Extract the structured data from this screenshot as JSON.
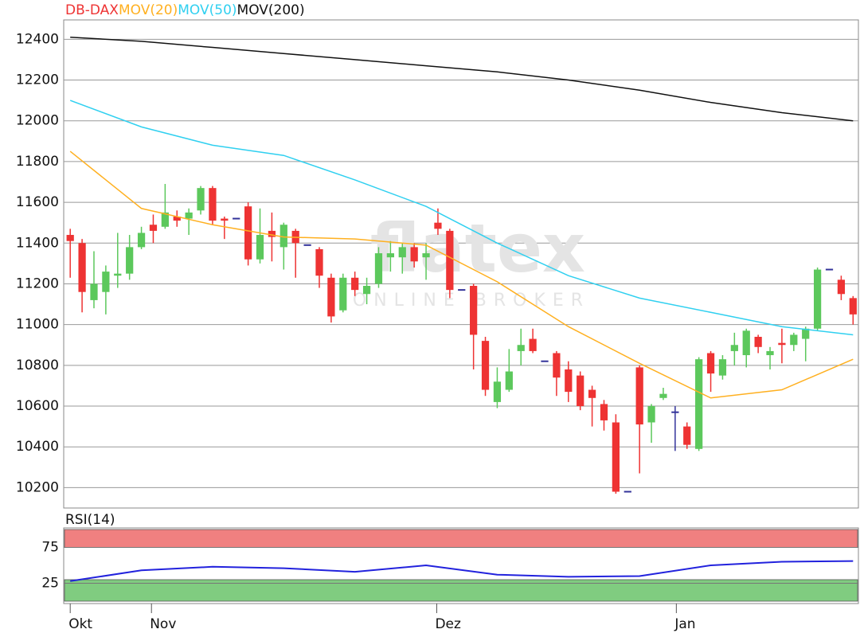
{
  "chart_data": [
    {
      "type": "candlestick",
      "name": "DB-DAX",
      "up_color": "#5cc85c",
      "down_color": "#ee3333",
      "doji_color": "#33339a",
      "x": [
        0,
        1,
        2,
        3,
        4,
        5,
        6,
        7,
        8,
        9,
        10,
        11,
        12,
        13,
        14,
        15,
        16,
        17,
        18,
        19,
        20,
        21,
        22,
        23,
        24,
        25,
        26,
        27,
        28,
        29,
        30,
        31,
        32,
        33,
        34,
        35,
        36,
        37,
        38,
        39,
        40,
        41,
        42,
        43,
        44,
        45,
        46,
        47,
        48,
        49,
        50,
        51,
        52,
        53,
        54,
        55,
        56,
        57,
        58,
        59,
        60,
        61,
        62,
        63,
        64,
        65,
        66
      ],
      "open": [
        11440,
        11400,
        11120,
        11160,
        11240,
        11250,
        11380,
        11490,
        11480,
        11530,
        11520,
        11560,
        11670,
        11520,
        11520,
        11580,
        11320,
        11460,
        11380,
        11460,
        11390,
        11370,
        11230,
        11070,
        11230,
        11150,
        11200,
        11330,
        11330,
        11380,
        11330,
        11500,
        11460,
        11170,
        11190,
        10920,
        10620,
        10680,
        10870,
        10930,
        10820,
        10860,
        10780,
        10750,
        10680,
        10610,
        10520,
        10180,
        10790,
        10520,
        10640,
        10570,
        10500,
        10390,
        10860,
        10750,
        10870,
        10850,
        10940,
        10850,
        10910,
        10900,
        10930,
        10980,
        11270,
        11220,
        11130
      ],
      "high": [
        11470,
        11420,
        11360,
        11290,
        11450,
        11440,
        11480,
        11540,
        11690,
        11560,
        11570,
        11680,
        11680,
        11530,
        11520,
        11600,
        11570,
        11550,
        11500,
        11470,
        11390,
        11380,
        11250,
        11250,
        11260,
        11230,
        11380,
        11410,
        11400,
        11400,
        11400,
        11570,
        11470,
        11170,
        11200,
        10940,
        10790,
        10880,
        10980,
        10980,
        10820,
        10870,
        10820,
        10770,
        10700,
        10630,
        10560,
        10180,
        10800,
        10610,
        10690,
        10600,
        10520,
        10840,
        10870,
        10850,
        10960,
        10980,
        10950,
        10890,
        10980,
        10960,
        10990,
        11280,
        11270,
        11240,
        11140
      ],
      "low": [
        11230,
        11060,
        11080,
        11050,
        11180,
        11220,
        11370,
        11400,
        11470,
        11480,
        11440,
        11540,
        11490,
        11420,
        11520,
        11290,
        11300,
        11310,
        11270,
        11230,
        11390,
        11180,
        11010,
        11060,
        11140,
        11100,
        11180,
        11260,
        11250,
        11280,
        11220,
        11440,
        11130,
        11170,
        10780,
        10650,
        10590,
        10670,
        10800,
        10860,
        10820,
        10650,
        10620,
        10580,
        10500,
        10480,
        10170,
        10180,
        10270,
        10420,
        10630,
        10380,
        10390,
        10380,
        10670,
        10730,
        10800,
        10790,
        10860,
        10780,
        10810,
        10870,
        10820,
        10970,
        11270,
        11120,
        11000
      ],
      "close": [
        11410,
        11160,
        11200,
        11260,
        11250,
        11380,
        11450,
        11460,
        11550,
        11510,
        11550,
        11670,
        11510,
        11510,
        11520,
        11320,
        11440,
        11430,
        11490,
        11400,
        11390,
        11240,
        11040,
        11230,
        11170,
        11190,
        11350,
        11350,
        11380,
        11310,
        11350,
        11470,
        11170,
        11170,
        10950,
        10680,
        10720,
        10770,
        10900,
        10870,
        10820,
        10740,
        10670,
        10600,
        10640,
        10530,
        10180,
        10180,
        10510,
        10600,
        10660,
        10570,
        10410,
        10830,
        10760,
        10830,
        10900,
        10970,
        10890,
        10870,
        10900,
        10950,
        10980,
        11270,
        11270,
        11150,
        11050
      ],
      "lines": [
        {
          "name": "MOV(20)",
          "color": "#ffb020",
          "x": [
            0,
            6,
            12,
            18,
            24,
            30,
            36,
            42,
            48,
            54,
            60,
            66
          ],
          "values": [
            11850,
            11570,
            11490,
            11430,
            11420,
            11390,
            11210,
            10990,
            10810,
            10640,
            10680,
            10830
          ]
        },
        {
          "name": "MOV(50)",
          "color": "#30d0f0",
          "x": [
            0,
            6,
            12,
            18,
            24,
            30,
            36,
            42,
            48,
            54,
            60,
            66
          ],
          "values": [
            12100,
            11970,
            11880,
            11830,
            11710,
            11580,
            11400,
            11240,
            11130,
            11060,
            10990,
            10950
          ]
        },
        {
          "name": "MOV(200)",
          "color": "#111111",
          "x": [
            0,
            6,
            12,
            18,
            24,
            30,
            36,
            42,
            48,
            54,
            60,
            66
          ],
          "values": [
            12410,
            12390,
            12360,
            12330,
            12300,
            12270,
            12240,
            12200,
            12150,
            12090,
            12040,
            12000
          ]
        }
      ],
      "xlim": [
        -0.55,
        66.45
      ],
      "ylim": [
        10100,
        12495
      ],
      "yticks": [
        10200,
        10400,
        10600,
        10800,
        11000,
        11200,
        11400,
        11600,
        11800,
        12000,
        12200,
        12400
      ],
      "grid": true,
      "watermark": [
        "flatex",
        "ONLINE BROKER"
      ]
    },
    {
      "type": "line",
      "title": "RSI(14)",
      "color": "#2222dd",
      "x": [
        0,
        6,
        12,
        18,
        24,
        30,
        36,
        42,
        48,
        54,
        60,
        66
      ],
      "values": [
        28,
        43,
        48,
        46,
        41,
        50,
        37,
        34,
        35,
        50,
        55,
        56
      ],
      "xlim": [
        -0.55,
        66.45
      ],
      "ylim": [
        0,
        100
      ],
      "yticks": [
        25,
        75
      ],
      "grid": true,
      "bands": [
        {
          "from": 75,
          "to": 100,
          "color": "#f08080"
        },
        {
          "from": 0,
          "to": 30,
          "color": "#80cc80"
        }
      ],
      "xticks": [
        {
          "value": 0,
          "label": "Okt"
        },
        {
          "value": 6.85,
          "label": "Nov"
        },
        {
          "value": 30.9,
          "label": "Dez"
        },
        {
          "value": 51.1,
          "label": "Jan"
        }
      ]
    }
  ]
}
